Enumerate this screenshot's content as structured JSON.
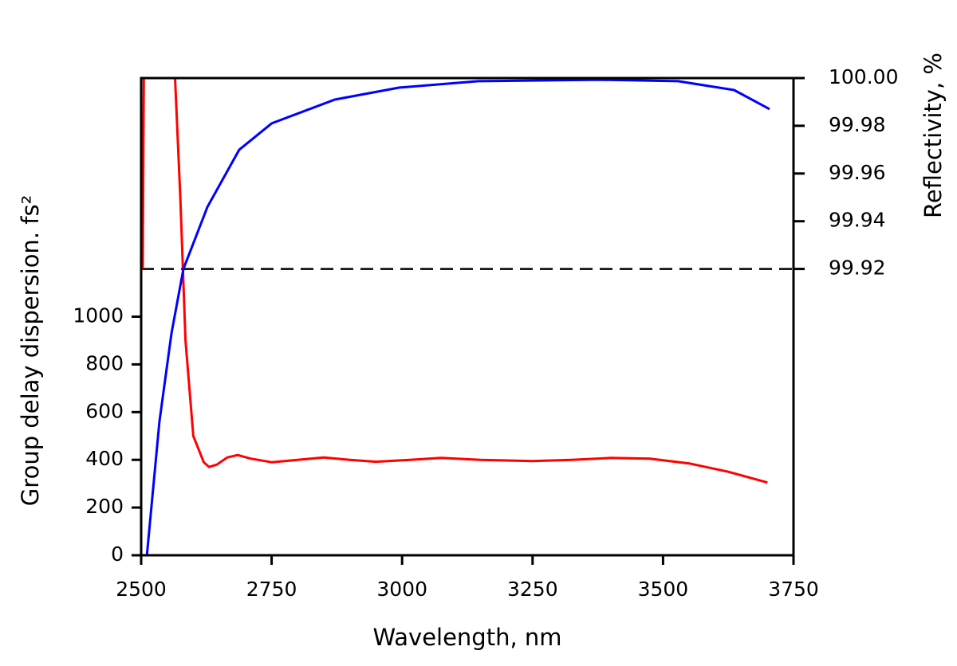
{
  "chart_data": {
    "type": "line",
    "xlabel": "Wavelength, nm",
    "ylabel": "Group delay dispersion. fs²",
    "y2label": "Reflectivity, %",
    "xlim": [
      2500,
      3750
    ],
    "xticks": [
      2500,
      2750,
      3000,
      3250,
      3500,
      3750
    ],
    "ylim": [
      0,
      2000
    ],
    "yticks": [
      0,
      200,
      400,
      600,
      800,
      1000
    ],
    "y2lim": [
      99.8,
      100.0
    ],
    "y2ticks": [
      99.92,
      99.94,
      99.96,
      99.98,
      {
        "value": 100.0,
        "label": "100.00"
      }
    ],
    "reference_line": {
      "value": 99.92,
      "axis": "y2",
      "color": "#000000"
    },
    "series": [
      {
        "color": "#ff0000",
        "axis": "y",
        "x": [
          2503,
          2505,
          2506,
          2565,
          2575,
          2585,
          2600,
          2620,
          2630,
          2645,
          2665,
          2685,
          2710,
          2750,
          2800,
          2850,
          2900,
          2950,
          3000,
          3075,
          3150,
          3250,
          3325,
          3400,
          3475,
          3550,
          3625,
          3700
        ],
        "values": [
          1200,
          2000,
          null,
          2000,
          1500,
          900,
          500,
          390,
          370,
          380,
          410,
          420,
          405,
          390,
          400,
          410,
          400,
          392,
          398,
          408,
          400,
          395,
          400,
          408,
          405,
          385,
          350,
          305
        ]
      },
      {
        "color": "#0000ff",
        "axis": "y2",
        "x": [
          2511,
          2535,
          2558,
          2581,
          2627,
          2688,
          2750,
          2871,
          2994,
          3146,
          3376,
          3529,
          3636,
          3704
        ],
        "values": [
          99.8,
          99.856,
          99.893,
          99.92,
          99.946,
          99.97,
          99.981,
          99.991,
          99.996,
          99.9987,
          99.9993,
          99.9987,
          99.995,
          99.987
        ]
      }
    ]
  }
}
